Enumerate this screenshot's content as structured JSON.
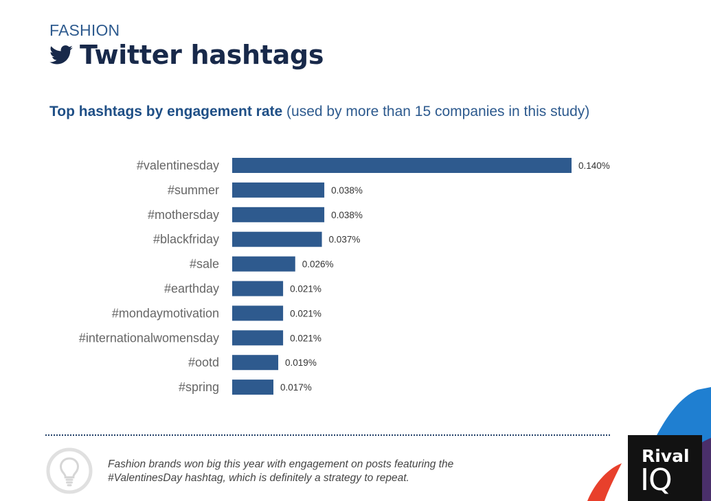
{
  "header": {
    "kicker": "FASHION",
    "title": "Twitter hashtags",
    "title_icon": "twitter-bird-icon"
  },
  "subtitle": {
    "bold": "Top hashtags by engagement rate",
    "rest": "(used by more than 15 companies in this study)"
  },
  "chart_data": {
    "type": "bar",
    "orientation": "horizontal",
    "title": "Top hashtags by engagement rate",
    "subtitle": "(used by more than 15 companies in this study)",
    "categories": [
      "#valentinesday",
      "#summer",
      "#mothersday",
      "#blackfriday",
      "#sale",
      "#earthday",
      "#mondaymotivation",
      "#internationalwomensday",
      "#ootd",
      "#spring"
    ],
    "values": [
      0.14,
      0.038,
      0.038,
      0.037,
      0.026,
      0.021,
      0.021,
      0.021,
      0.019,
      0.017
    ],
    "value_labels": [
      "0.140%",
      "0.038%",
      "0.038%",
      "0.037%",
      "0.026%",
      "0.021%",
      "0.021%",
      "0.021%",
      "0.019%",
      "0.017%"
    ],
    "xlabel": "",
    "ylabel": "",
    "xlim": [
      0,
      0.14
    ],
    "grid": false,
    "legend": "none",
    "bar_color": "#2e5a8e"
  },
  "footer": {
    "note_line1": "Fashion brands won big this year with engagement on posts featuring the",
    "note_line2": "#ValentinesDay hashtag, which is definitely a strategy to repeat.",
    "note_icon": "lightbulb-icon"
  },
  "logo": {
    "line1": "Rival",
    "line2": "IQ"
  },
  "colors": {
    "accent": "#2e5a8e",
    "title": "#18294a",
    "deco_blue": "#1f7fd1",
    "deco_red": "#e8402c",
    "deco_purple": "#4a2f6a"
  }
}
